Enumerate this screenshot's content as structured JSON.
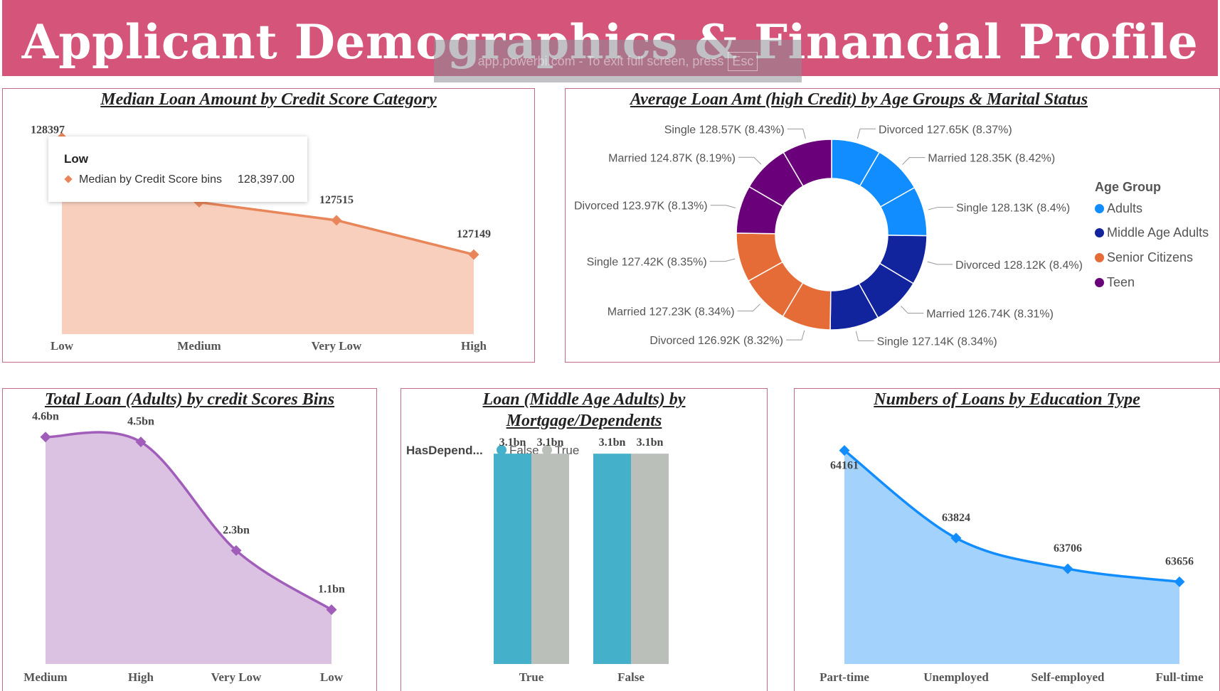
{
  "header": {
    "title": "Applicant Demographics & Financial Profile"
  },
  "fullscreen_notice": {
    "text": "app.powerbi.com - To exit full screen, press",
    "key": "Esc"
  },
  "tooltip": {
    "title": "Low",
    "series": "Median by Credit Score bins",
    "value": "128,397.00"
  },
  "chart_data": [
    {
      "id": "median-loan",
      "type": "area",
      "title": "Median Loan Amount by Credit Score Category",
      "categories": [
        "Low",
        "Medium",
        "Very Low",
        "High"
      ],
      "values": [
        128397,
        127707,
        127515,
        127149
      ],
      "data_labels": [
        "128397",
        "127707",
        "127515",
        "127149"
      ],
      "ylim": [
        126300,
        128500
      ],
      "color": "#e8865a",
      "fill": "#f8cfbd"
    },
    {
      "id": "avg-loan-donut",
      "type": "pie",
      "title": "Average Loan Amt (high Credit) by Age Groups & Marital Status",
      "legend": {
        "title": "Age Group",
        "items": [
          {
            "name": "Adults",
            "color": "#118dff"
          },
          {
            "name": "Middle Age Adults",
            "color": "#12239e"
          },
          {
            "name": "Senior Citizens",
            "color": "#e66c37"
          },
          {
            "name": "Teen",
            "color": "#6b007b"
          }
        ]
      },
      "slices": [
        {
          "group": "Adults",
          "label": "Divorced 127.65K (8.37%)",
          "value": 127.65,
          "color": "#118dff"
        },
        {
          "group": "Adults",
          "label": "Married 128.35K (8.42%)",
          "value": 128.35,
          "color": "#118dff"
        },
        {
          "group": "Adults",
          "label": "Single 128.13K (8.4%)",
          "value": 128.13,
          "color": "#118dff"
        },
        {
          "group": "Middle Age Adults",
          "label": "Divorced 128.12K (8.4%)",
          "value": 128.12,
          "color": "#12239e"
        },
        {
          "group": "Middle Age Adults",
          "label": "Married 126.74K (8.31%)",
          "value": 126.74,
          "color": "#12239e"
        },
        {
          "group": "Middle Age Adults",
          "label": "Single 127.14K (8.34%)",
          "value": 127.14,
          "color": "#12239e"
        },
        {
          "group": "Senior Citizens",
          "label": "Divorced 126.92K (8.32%)",
          "value": 126.92,
          "color": "#e66c37"
        },
        {
          "group": "Senior Citizens",
          "label": "Married 127.23K (8.34%)",
          "value": 127.23,
          "color": "#e66c37"
        },
        {
          "group": "Senior Citizens",
          "label": "Single 127.42K (8.35%)",
          "value": 127.42,
          "color": "#e66c37"
        },
        {
          "group": "Teen",
          "label": "Divorced 123.97K (8.13%)",
          "value": 123.97,
          "color": "#6b007b"
        },
        {
          "group": "Teen",
          "label": "Married 124.87K (8.19%)",
          "value": 124.87,
          "color": "#6b007b"
        },
        {
          "group": "Teen",
          "label": "Single 128.57K (8.43%)",
          "value": 128.57,
          "color": "#6b007b"
        }
      ]
    },
    {
      "id": "total-loan-adults",
      "type": "area",
      "title": "Total Loan (Adults) by credit Scores Bins",
      "categories": [
        "Medium",
        "High",
        "Very Low",
        "Low"
      ],
      "values": [
        4.6,
        4.5,
        2.3,
        1.1
      ],
      "data_labels": [
        "4.6bn",
        "4.5bn",
        "2.3bn",
        "1.1bn"
      ],
      "ylim": [
        0,
        5.1
      ],
      "color": "#a05db9",
      "fill": "#dcc2e2"
    },
    {
      "id": "loan-middle-age",
      "type": "bar",
      "title_lines": [
        "Loan (Middle Age Adults) by",
        "Mortgage/Dependents"
      ],
      "legend": {
        "title": "HasDepend...",
        "items": [
          {
            "name": "False",
            "color": "#45b0c9"
          },
          {
            "name": "True",
            "color": "#bbbfba"
          }
        ]
      },
      "categories": [
        "True",
        "False"
      ],
      "series": [
        {
          "name": "False",
          "values": [
            3.1,
            3.1
          ],
          "labels": [
            "3.1bn",
            "3.1bn"
          ],
          "color": "#45b0c9"
        },
        {
          "name": "True",
          "values": [
            3.1,
            3.1
          ],
          "labels": [
            "3.1bn",
            "3.1bn"
          ],
          "color": "#bbbfba"
        }
      ],
      "ylim": [
        0,
        3.5
      ]
    },
    {
      "id": "loans-education",
      "type": "area",
      "title": "Numbers of Loans by Education Type",
      "categories": [
        "Part-time",
        "Unemployed",
        "Self-employed",
        "Full-time"
      ],
      "values": [
        64161,
        63824,
        63706,
        63656
      ],
      "data_labels": [
        "64161",
        "63824",
        "63706",
        "63656"
      ],
      "ylim": [
        63340,
        64220
      ],
      "color": "#118dff",
      "fill": "#a3d2fd"
    }
  ]
}
